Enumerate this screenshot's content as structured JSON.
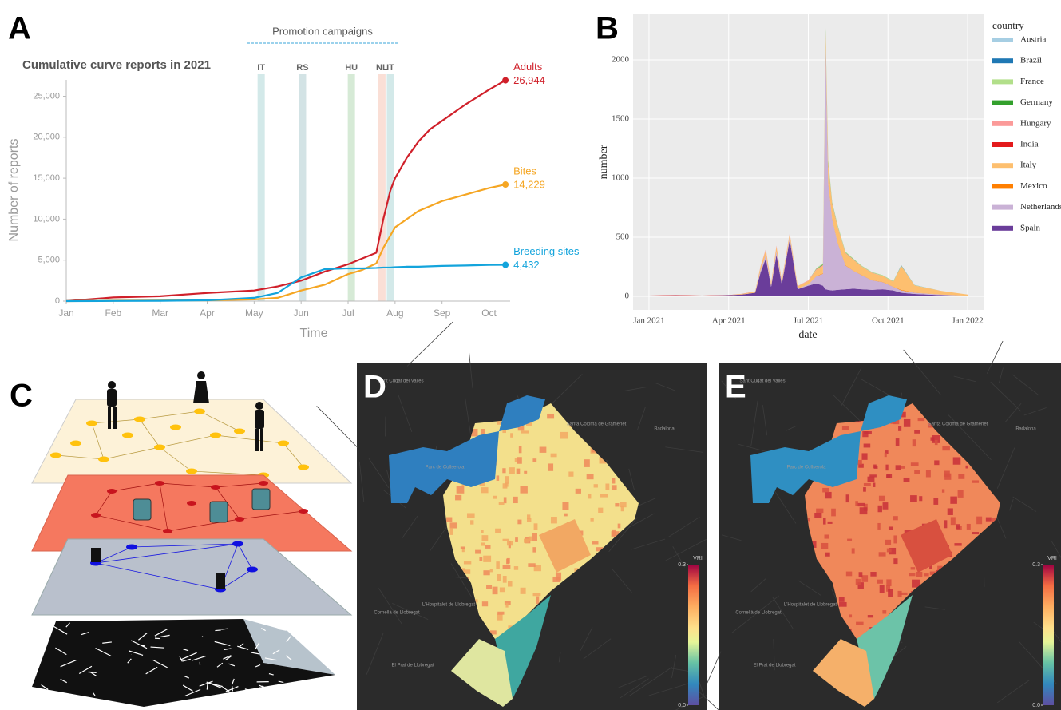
{
  "chart_data": [
    {
      "type": "line",
      "panel": "A",
      "title": "Cumulative curve reports in 2021",
      "subtitle": "Promotion campaigns",
      "xlabel": "Time",
      "ylabel": "Number of reports",
      "x": [
        0,
        1,
        2,
        3,
        4,
        4.5,
        5,
        5.5,
        6,
        6.3,
        6.6,
        6.75,
        6.9,
        7,
        7.25,
        7.5,
        7.75,
        8,
        8.5,
        9,
        9.35
      ],
      "series": [
        {
          "name": "Adults",
          "color": "#d0202a",
          "end_label": "26,944",
          "values": [
            0,
            450,
            600,
            1000,
            1300,
            1800,
            2500,
            3600,
            4500,
            5200,
            5900,
            10000,
            13500,
            15000,
            17500,
            19500,
            21000,
            22000,
            24000,
            25800,
            26944
          ]
        },
        {
          "name": "Bites",
          "color": "#f5a623",
          "end_label": "14,229",
          "values": [
            0,
            50,
            80,
            100,
            200,
            400,
            1300,
            2000,
            3300,
            3800,
            4600,
            6500,
            8000,
            9000,
            10000,
            11000,
            11600,
            12200,
            13000,
            13800,
            14229
          ]
        },
        {
          "name": "Breeding sites",
          "color": "#13a4dc",
          "end_label": "4,432",
          "values": [
            0,
            20,
            40,
            100,
            400,
            1000,
            2900,
            3900,
            4000,
            4000,
            4050,
            4100,
            4100,
            4150,
            4200,
            4200,
            4250,
            4300,
            4350,
            4420,
            4432
          ]
        }
      ],
      "campaigns": [
        {
          "label": "IT",
          "x": 4.15,
          "color": "#d3e9e9"
        },
        {
          "label": "RS",
          "x": 5.03,
          "color": "#d3e3e5"
        },
        {
          "label": "HU",
          "x": 6.07,
          "color": "#d6ead6"
        },
        {
          "label": "NL",
          "x": 6.72,
          "color": "#fadfd6"
        },
        {
          "label": "IT",
          "x": 6.9,
          "color": "#d3e9e9"
        }
      ],
      "xlim": [
        0,
        9.45
      ],
      "xticks": [
        {
          "value": 0,
          "label": "Jan"
        },
        {
          "value": 1,
          "label": "Feb"
        },
        {
          "value": 2,
          "label": "Mar"
        },
        {
          "value": 3,
          "label": "Apr"
        },
        {
          "value": 4,
          "label": "May"
        },
        {
          "value": 5,
          "label": "Jun"
        },
        {
          "value": 6,
          "label": "Jul"
        },
        {
          "value": 7,
          "label": "Aug"
        },
        {
          "value": 8,
          "label": "Sep"
        },
        {
          "value": 9,
          "label": "Oct"
        }
      ],
      "ylim": [
        0,
        27000
      ],
      "yticks": [
        0,
        {
          "value": 5000,
          "label": "5,000"
        },
        {
          "value": 10000,
          "label": "10,000"
        },
        {
          "value": 15000,
          "label": "15,000"
        },
        {
          "value": 20000,
          "label": "20,000"
        },
        {
          "value": 25000,
          "label": "25,000"
        }
      ]
    },
    {
      "type": "area",
      "panel": "B",
      "xlabel": "date",
      "ylabel": "number",
      "legend_title": "country",
      "legend": "right",
      "grid": true,
      "x": [
        0,
        1,
        2,
        3,
        3.5,
        4,
        4.2,
        4.4,
        4.6,
        4.8,
        5,
        5.3,
        5.6,
        6,
        6.3,
        6.55,
        6.65,
        6.75,
        6.9,
        7.1,
        7.4,
        7.7,
        8,
        8.4,
        8.8,
        9.2,
        9.5,
        10,
        11,
        12
      ],
      "series": [
        {
          "name": "Austria",
          "color": "#a6cee3",
          "values": [
            0,
            0,
            0,
            0,
            0,
            0,
            0,
            0,
            0,
            0,
            0,
            0,
            0,
            0,
            0,
            2,
            3,
            2,
            1,
            1,
            0,
            0,
            0,
            0,
            0,
            0,
            0,
            0,
            0,
            0
          ]
        },
        {
          "name": "Brazil",
          "color": "#1f78b4",
          "values": [
            0,
            0,
            0,
            0,
            0,
            0,
            0,
            0,
            0,
            0,
            0,
            0,
            0,
            0,
            0,
            0,
            0,
            0,
            0,
            0,
            0,
            0,
            0,
            0,
            0,
            0,
            2,
            1,
            0,
            0
          ]
        },
        {
          "name": "France",
          "color": "#b2df8a",
          "values": [
            0,
            0,
            0,
            0,
            0,
            0,
            0,
            0,
            0,
            0,
            0,
            0,
            0,
            0,
            5,
            10,
            20,
            20,
            10,
            10,
            8,
            5,
            5,
            5,
            5,
            5,
            3,
            2,
            0,
            0
          ]
        },
        {
          "name": "Germany",
          "color": "#33a02c",
          "values": [
            0,
            0,
            0,
            0,
            0,
            0,
            0,
            0,
            0,
            0,
            0,
            0,
            0,
            0,
            2,
            5,
            15,
            10,
            5,
            3,
            2,
            2,
            1,
            1,
            1,
            1,
            1,
            0,
            0,
            0
          ]
        },
        {
          "name": "Hungary",
          "color": "#fb9a99",
          "values": [
            0,
            0,
            0,
            0,
            0,
            0,
            5,
            10,
            5,
            8,
            5,
            5,
            3,
            5,
            8,
            10,
            15,
            10,
            8,
            6,
            5,
            4,
            3,
            3,
            2,
            2,
            2,
            1,
            0,
            0
          ]
        },
        {
          "name": "India",
          "color": "#e31a1c",
          "values": [
            2,
            3,
            2,
            1,
            1,
            1,
            0,
            0,
            0,
            0,
            0,
            0,
            0,
            0,
            0,
            0,
            0,
            0,
            0,
            0,
            0,
            0,
            0,
            0,
            0,
            0,
            0,
            0,
            0,
            0
          ]
        },
        {
          "name": "Italy",
          "color": "#fdbf6f",
          "values": [
            0,
            0,
            0,
            0,
            5,
            10,
            30,
            40,
            20,
            40,
            20,
            30,
            20,
            30,
            50,
            60,
            100,
            150,
            120,
            130,
            100,
            90,
            70,
            60,
            50,
            40,
            200,
            60,
            30,
            10
          ]
        },
        {
          "name": "Mexico",
          "color": "#ff7f00",
          "values": [
            0,
            0,
            0,
            0,
            0,
            0,
            0,
            0,
            0,
            0,
            0,
            0,
            0,
            0,
            2,
            4,
            10,
            8,
            5,
            4,
            3,
            2,
            2,
            2,
            2,
            2,
            5,
            2,
            1,
            0
          ]
        },
        {
          "name": "Netherlands",
          "color": "#cab2d6",
          "values": [
            0,
            0,
            0,
            0,
            0,
            0,
            20,
            30,
            10,
            30,
            10,
            20,
            5,
            10,
            60,
            100,
            2050,
            900,
            600,
            400,
            200,
            150,
            120,
            80,
            60,
            30,
            20,
            10,
            5,
            0
          ]
        },
        {
          "name": "Spain",
          "color": "#6a3d9a",
          "values": [
            5,
            8,
            5,
            10,
            15,
            30,
            200,
            320,
            80,
            350,
            100,
            480,
            60,
            90,
            110,
            90,
            60,
            55,
            50,
            55,
            60,
            65,
            60,
            55,
            60,
            50,
            30,
            20,
            10,
            5
          ]
        }
      ],
      "xlim": [
        -0.6,
        12.6
      ],
      "xticks": [
        {
          "value": 0,
          "label": "Jan 2021"
        },
        {
          "value": 3,
          "label": "Apr 2021"
        },
        {
          "value": 6,
          "label": "Jul 2021"
        },
        {
          "value": 9,
          "label": "Oct 2021"
        },
        {
          "value": 12,
          "label": "Jan 2022"
        }
      ],
      "ylim": [
        -115,
        2385
      ],
      "yticks": [
        0,
        500,
        1000,
        1500,
        2000
      ]
    },
    {
      "type": "map",
      "panel": "D",
      "region_colors": [
        "#2f7fbf",
        "#f3e08c",
        "#f2a863",
        "#dfe6a0",
        "#3fa7a0",
        "#ef8a5a"
      ],
      "place_labels": [
        "Sant Cugat del Vallès",
        "Badalona",
        "Santa Coloma de Gramenet",
        "Parc de Collserola",
        "L'Hospitalet de Llobregat",
        "Cornellà de Llobregat",
        "El Prat de Llobregat"
      ],
      "colorbar": {
        "label": "VRI",
        "lim": [
          0,
          0.3
        ],
        "ticks": [
          {
            "value": 0,
            "label": "0.0"
          },
          {
            "value": 0.3,
            "label": "0.3"
          }
        ]
      }
    },
    {
      "type": "map",
      "panel": "E",
      "region_colors": [
        "#2f8fc2",
        "#f0885a",
        "#d8503f",
        "#f5b06a",
        "#6cc3a8",
        "#c8303a"
      ],
      "place_labels": [
        "Sant Cugat del Vallès",
        "Badalona",
        "Santa Coloma de Gramenet",
        "Parc de Collserola",
        "L'Hospitalet de Llobregat",
        "Cornellà de Llobregat",
        "El Prat de Llobregat"
      ],
      "colorbar": {
        "label": "VRI",
        "lim": [
          0,
          0.3
        ],
        "ticks": [
          {
            "value": 0,
            "label": "0.0"
          },
          {
            "value": 0.3,
            "label": "0.3"
          }
        ]
      }
    }
  ],
  "diagram": {
    "panel": "C"
  }
}
